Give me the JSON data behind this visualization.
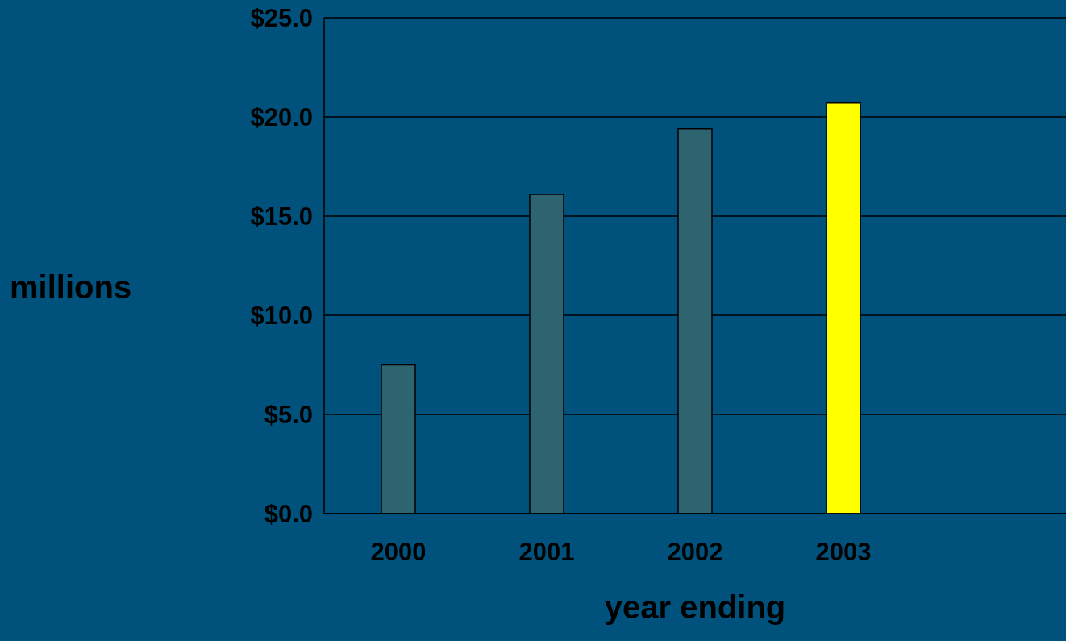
{
  "chart_data": {
    "type": "bar",
    "xlabel": "year ending",
    "ylabel": "millions",
    "categories": [
      "2000",
      "2001",
      "2002",
      "2003",
      null
    ],
    "values": [
      7.5,
      16.1,
      19.4,
      20.7,
      null
    ],
    "colors": [
      "#2e6470",
      "#2e6470",
      "#2e6470",
      "#ffff00",
      "#2e6470"
    ],
    "ylim": [
      0,
      25
    ],
    "yticks": [
      {
        "value": 0,
        "label": "$0.0"
      },
      {
        "value": 5,
        "label": "$5.0"
      },
      {
        "value": 10,
        "label": "$10.0"
      },
      {
        "value": 15,
        "label": "$15.0"
      },
      {
        "value": 20,
        "label": "$20.0"
      },
      {
        "value": 25,
        "label": "$25.0"
      }
    ],
    "grid": "y"
  }
}
